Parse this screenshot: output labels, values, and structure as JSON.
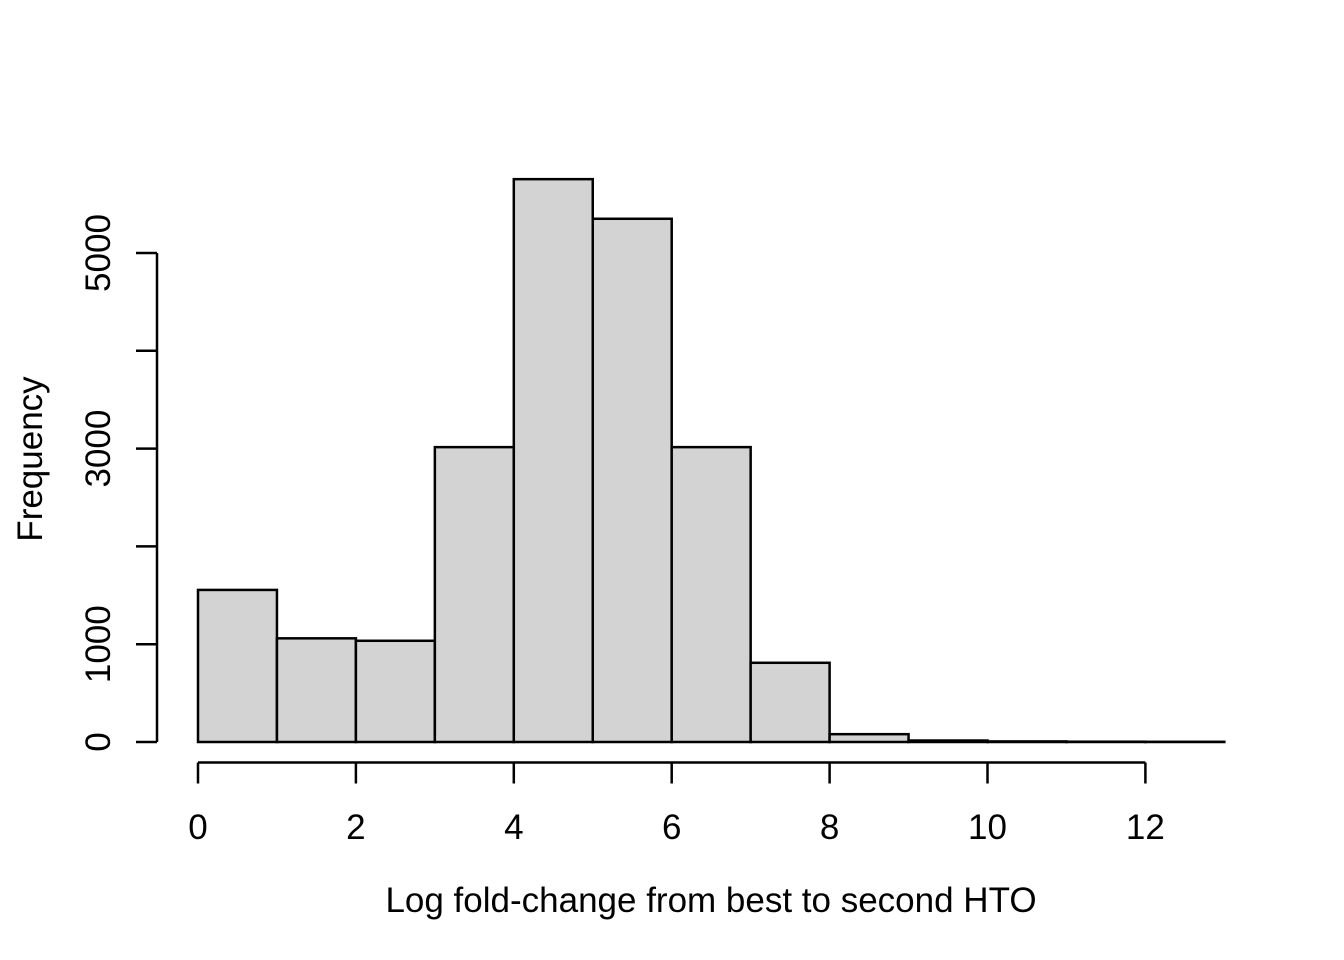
{
  "chart_data": {
    "type": "bar",
    "subtype": "histogram",
    "title": "",
    "xlabel": "Log fold-change from best to second HTO",
    "ylabel": "Frequency",
    "xlim": [
      0,
      13
    ],
    "ylim": [
      0,
      5990
    ],
    "grid": false,
    "legend_position": "none",
    "bar_fill": "#d3d3d3",
    "bar_border": "#000000",
    "axis_color": "#000000",
    "text_color": "#000000",
    "background_color": "#ffffff",
    "bins": [
      {
        "from": 0,
        "to": 1,
        "count": 1555
      },
      {
        "from": 1,
        "to": 2,
        "count": 1060
      },
      {
        "from": 2,
        "to": 3,
        "count": 1035
      },
      {
        "from": 3,
        "to": 4,
        "count": 3015
      },
      {
        "from": 4,
        "to": 5,
        "count": 5755
      },
      {
        "from": 5,
        "to": 6,
        "count": 5350
      },
      {
        "from": 6,
        "to": 7,
        "count": 3015
      },
      {
        "from": 7,
        "to": 8,
        "count": 810
      },
      {
        "from": 8,
        "to": 9,
        "count": 80
      },
      {
        "from": 9,
        "to": 10,
        "count": 15
      },
      {
        "from": 10,
        "to": 11,
        "count": 6
      },
      {
        "from": 11,
        "to": 12,
        "count": 3
      },
      {
        "from": 12,
        "to": 13,
        "count": 2
      }
    ],
    "x_ticks": [
      {
        "value": 0,
        "label": "0"
      },
      {
        "value": 2,
        "label": "2"
      },
      {
        "value": 4,
        "label": "4"
      },
      {
        "value": 6,
        "label": "6"
      },
      {
        "value": 8,
        "label": "8"
      },
      {
        "value": 10,
        "label": "10"
      },
      {
        "value": 12,
        "label": "12"
      }
    ],
    "y_ticks": [
      {
        "value": 0,
        "label": "0"
      },
      {
        "value": 1000,
        "label": "1000"
      },
      {
        "value": 2000,
        "label": ""
      },
      {
        "value": 3000,
        "label": "3000"
      },
      {
        "value": 4000,
        "label": ""
      },
      {
        "value": 5000,
        "label": "5000"
      }
    ]
  }
}
